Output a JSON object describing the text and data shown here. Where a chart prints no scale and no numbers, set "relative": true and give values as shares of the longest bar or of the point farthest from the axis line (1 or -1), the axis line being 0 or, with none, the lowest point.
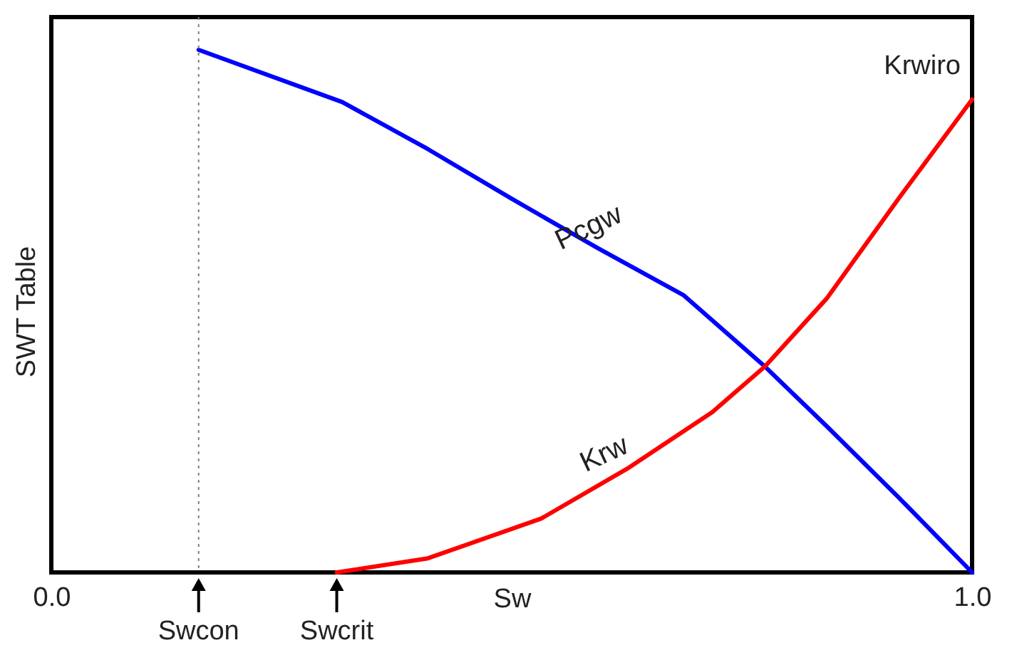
{
  "chart_data": {
    "type": "line",
    "relative": true,
    "xlabel": "Sw",
    "ylabel": "SWT Table",
    "xlim": [
      0,
      1
    ],
    "xticks": [
      {
        "value": 0,
        "label": "0.0"
      },
      {
        "value": 1,
        "label": "1.0"
      }
    ],
    "grid": false,
    "marker": "none",
    "line_style": "solid",
    "series": [
      {
        "name": "Pcgw",
        "color": "#0000ff",
        "x": [
          0.16,
          0.316,
          0.409,
          0.5,
          0.594,
          0.687,
          0.775,
          0.842,
          0.92,
          1
        ],
        "values": [
          1,
          0.9,
          0.81,
          0.715,
          0.62,
          0.53,
          0.394,
          0.28,
          0.144,
          0
        ]
      },
      {
        "name": "Krw",
        "color": "#ff0000",
        "x": [
          0.31,
          0.409,
          0.532,
          0.625,
          0.718,
          0.775,
          0.842,
          0.92,
          1
        ],
        "values": [
          0,
          0.027,
          0.103,
          0.198,
          0.307,
          0.394,
          0.524,
          0.715,
          0.905
        ]
      }
    ],
    "ref_lines": [
      {
        "axis": "x",
        "value": 0.16,
        "label": "Swcon",
        "line_style": "dotted",
        "color": "#808080"
      }
    ],
    "annotations": [
      {
        "text": "Swcrit",
        "x": 0.31,
        "y": 0
      },
      {
        "text": "Krwiro",
        "x": 1,
        "y": 0.905
      }
    ]
  }
}
